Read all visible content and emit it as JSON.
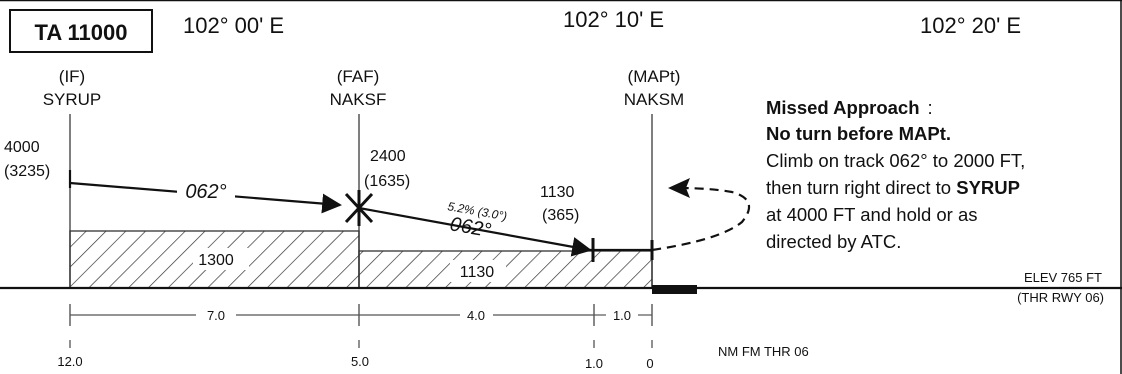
{
  "ta_box": "TA 11000",
  "longitudes": [
    "102° 00' E",
    "102° 10' E",
    "102° 20' E"
  ],
  "fixes": [
    {
      "role": "(IF)",
      "name": "SYRUP",
      "alt": "4000",
      "alt_agl": "(3235)"
    },
    {
      "role": "(FAF)",
      "name": "NAKSF",
      "alt": "2400",
      "alt_agl": "(1635)"
    },
    {
      "role": "(MAPt)",
      "name": "NAKSM"
    }
  ],
  "stepdown": {
    "alt": "1130",
    "alt_agl": "(365)"
  },
  "tracks": {
    "initial": "062°",
    "final": "062°",
    "gradient": "5.2% (3.0°)"
  },
  "obstacle_clearance": {
    "initial": "1300",
    "final": "1130"
  },
  "missed_approach": {
    "title": "Missed Approach",
    "title_sep": ":",
    "line2": "No turn before MAPt.",
    "line3": "Climb on track 062° to 2000 FT,",
    "line4_pre": "then turn right direct to ",
    "line4_fix": "SYRUP",
    "line5": "at 4000 FT and hold or as",
    "line6": "directed by ATC."
  },
  "elevation": {
    "elev": "ELEV 765 FT",
    "thr": "(THR RWY 06)"
  },
  "segment_distances": [
    "7.0",
    "4.0",
    "1.0"
  ],
  "distance_scale": {
    "ticks": [
      "12.0",
      "5.0",
      "1.0",
      "0"
    ],
    "unit": "NM FM THR 06"
  }
}
